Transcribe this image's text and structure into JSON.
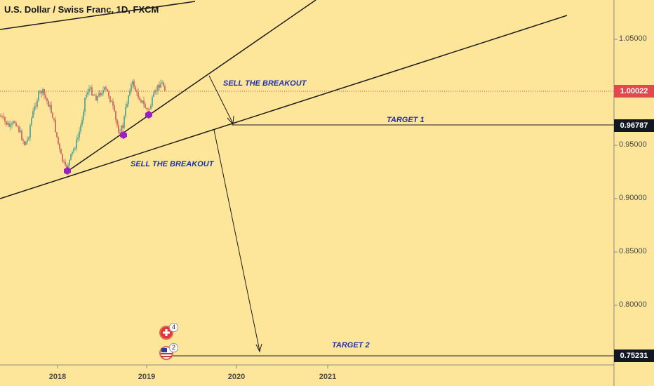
{
  "header": {
    "title": "U.S. Dollar / Swiss Franc, 1D, FXCM"
  },
  "annotations": {
    "sell_breakout_1": "SELL THE BREAKOUT",
    "sell_breakout_2": "SELL THE BREAKOUT",
    "target_1": "TARGET 1",
    "target_2": "TARGET 2"
  },
  "price_axis": {
    "ticks": [
      "1.05000",
      "1.00022",
      "0.95000",
      "0.90000",
      "0.85000",
      "0.80000"
    ],
    "current_price_label": "1.00022",
    "target_1_label": "0.96787",
    "target_2_label": "0.75231",
    "label_colors": {
      "current": "#e5474f",
      "target": "#131722"
    }
  },
  "time_axis": {
    "ticks": [
      "2018",
      "2019",
      "2020",
      "2021"
    ]
  },
  "events": {
    "swiss_event_count": "4",
    "us_event_count": "2",
    "swiss_icon": "swiss-flag-icon",
    "us_icon": "us-flag-icon"
  },
  "colors": {
    "background": "#fde69a",
    "candle_up": "#4a9b8f",
    "candle_down": "#c65a5a",
    "pivot_marker": "#9b1ec6",
    "annotation_text": "#1f2fb3",
    "current_price_line": "#e5474f"
  }
}
